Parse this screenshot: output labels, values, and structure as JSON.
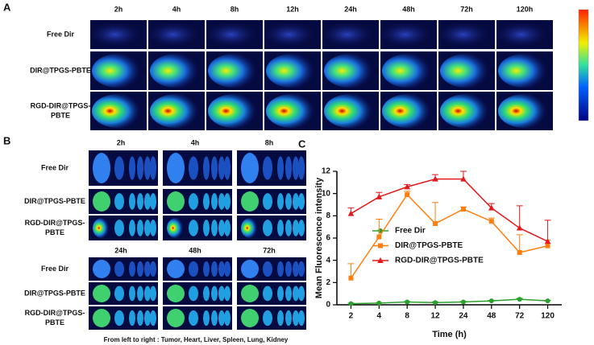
{
  "panels": {
    "a": {
      "label": "A",
      "times": [
        "2h",
        "4h",
        "8h",
        "12h",
        "24h",
        "48h",
        "72h",
        "120h"
      ],
      "rows": [
        [
          "Free Dir"
        ],
        [
          "DIR@TPGS-PBTE"
        ],
        [
          "RGD-DIR@TPGS-",
          "PBTE"
        ]
      ]
    },
    "b": {
      "label": "B",
      "groups": [
        {
          "times": [
            "2h",
            "4h",
            "8h"
          ],
          "rows": [
            [
              "Free Dir"
            ],
            [
              "DIR@TPGS-PBTE"
            ],
            [
              "RGD-DIR@TPGS-",
              "PBTE"
            ]
          ]
        },
        {
          "times": [
            "24h",
            "48h",
            "72h"
          ],
          "rows": [
            [
              "Free Dir"
            ],
            [
              "DIR@TPGS-PBTE"
            ],
            [
              "RGD-DIR@TPGS-",
              "PBTE"
            ]
          ]
        }
      ],
      "caption": "From left to right : Tumor, Heart,  Liver, Spleen, Lung, Kidney"
    },
    "c": {
      "label": "C"
    }
  },
  "chart_data": {
    "type": "line",
    "x_label": "Time (h)",
    "y_label": "Mean Fluorescence intensity",
    "categories": [
      "2",
      "4",
      "8",
      "12",
      "24",
      "48",
      "72",
      "120"
    ],
    "ylim": [
      0,
      12
    ],
    "yticks": [
      0,
      2,
      4,
      6,
      8,
      10,
      12
    ],
    "series": [
      {
        "name": "Free Dir",
        "color": "#2ca02c",
        "marker": "circle",
        "values": [
          0.1,
          0.15,
          0.25,
          0.2,
          0.25,
          0.35,
          0.5,
          0.35
        ],
        "errors": [
          0.05,
          0.05,
          0.05,
          0.05,
          0.05,
          0.05,
          0.08,
          0.05
        ]
      },
      {
        "name": "DIR@TPGS-PBTE",
        "color": "#ff7f0e",
        "marker": "square",
        "values": [
          2.4,
          6.1,
          9.9,
          7.3,
          8.6,
          7.5,
          4.7,
          5.3
        ],
        "errors": [
          1.3,
          1.6,
          0.3,
          1.9,
          0.2,
          0.3,
          1.6,
          0.5
        ]
      },
      {
        "name": "RGD-DIR@TPGS-PBTE",
        "color": "#e31a1c",
        "marker": "triangle",
        "values": [
          8.2,
          9.7,
          10.6,
          11.3,
          11.3,
          8.7,
          6.9,
          5.7
        ],
        "errors": [
          0.5,
          0.4,
          0.2,
          0.4,
          0.7,
          0.4,
          2.0,
          1.9
        ]
      }
    ]
  }
}
